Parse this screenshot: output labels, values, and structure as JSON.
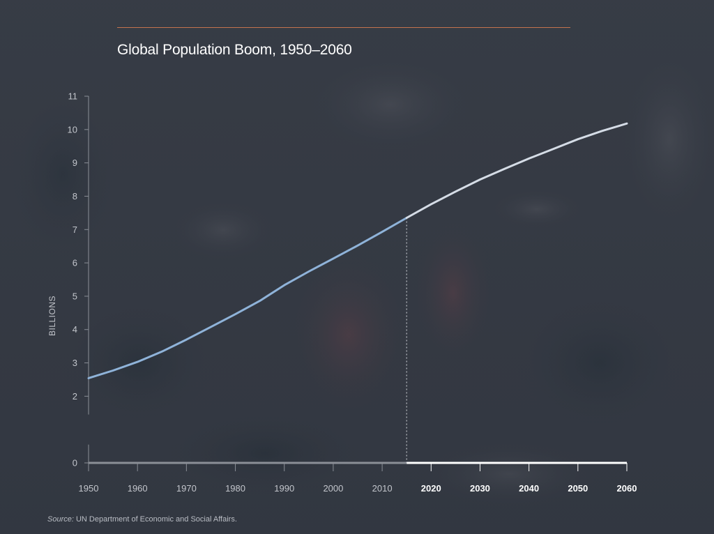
{
  "title": "Global Population Boom, 1950–2060",
  "source": {
    "label": "Source:",
    "text": "UN Department of Economic and Social Affairs."
  },
  "colors": {
    "accent_rule": "#c4734e",
    "historical_line": "#8fb3d9",
    "projected_line": "#d5dce6",
    "axis_historical": "#8b8f97",
    "axis_projected": "#ffffff"
  },
  "chart_data": {
    "type": "line",
    "title": "Global Population Boom, 1950–2060",
    "xlabel": "",
    "ylabel": "BILLIONS",
    "xlim": [
      1950,
      2060
    ],
    "ylim": [
      0,
      11
    ],
    "divider_year": 2015,
    "x_ticks": [
      1950,
      1960,
      1970,
      1980,
      1990,
      2000,
      2010,
      2020,
      2030,
      2040,
      2050,
      2060
    ],
    "y_ticks": [
      0,
      2,
      3,
      4,
      5,
      6,
      7,
      8,
      9,
      10,
      11
    ],
    "grid": false,
    "series": [
      {
        "segment": "historical",
        "x": [
          1950,
          1955,
          1960,
          1965,
          1970,
          1975,
          1980,
          1985,
          1990,
          1995,
          2000,
          2005,
          2010,
          2015
        ],
        "y": [
          2.54,
          2.77,
          3.03,
          3.34,
          3.7,
          4.08,
          4.46,
          4.86,
          5.33,
          5.74,
          6.13,
          6.52,
          6.93,
          7.35
        ]
      },
      {
        "segment": "projected",
        "x": [
          2015,
          2020,
          2025,
          2030,
          2035,
          2040,
          2045,
          2050,
          2055,
          2060
        ],
        "y": [
          7.35,
          7.76,
          8.14,
          8.5,
          8.82,
          9.13,
          9.42,
          9.71,
          9.96,
          10.18
        ]
      }
    ]
  }
}
